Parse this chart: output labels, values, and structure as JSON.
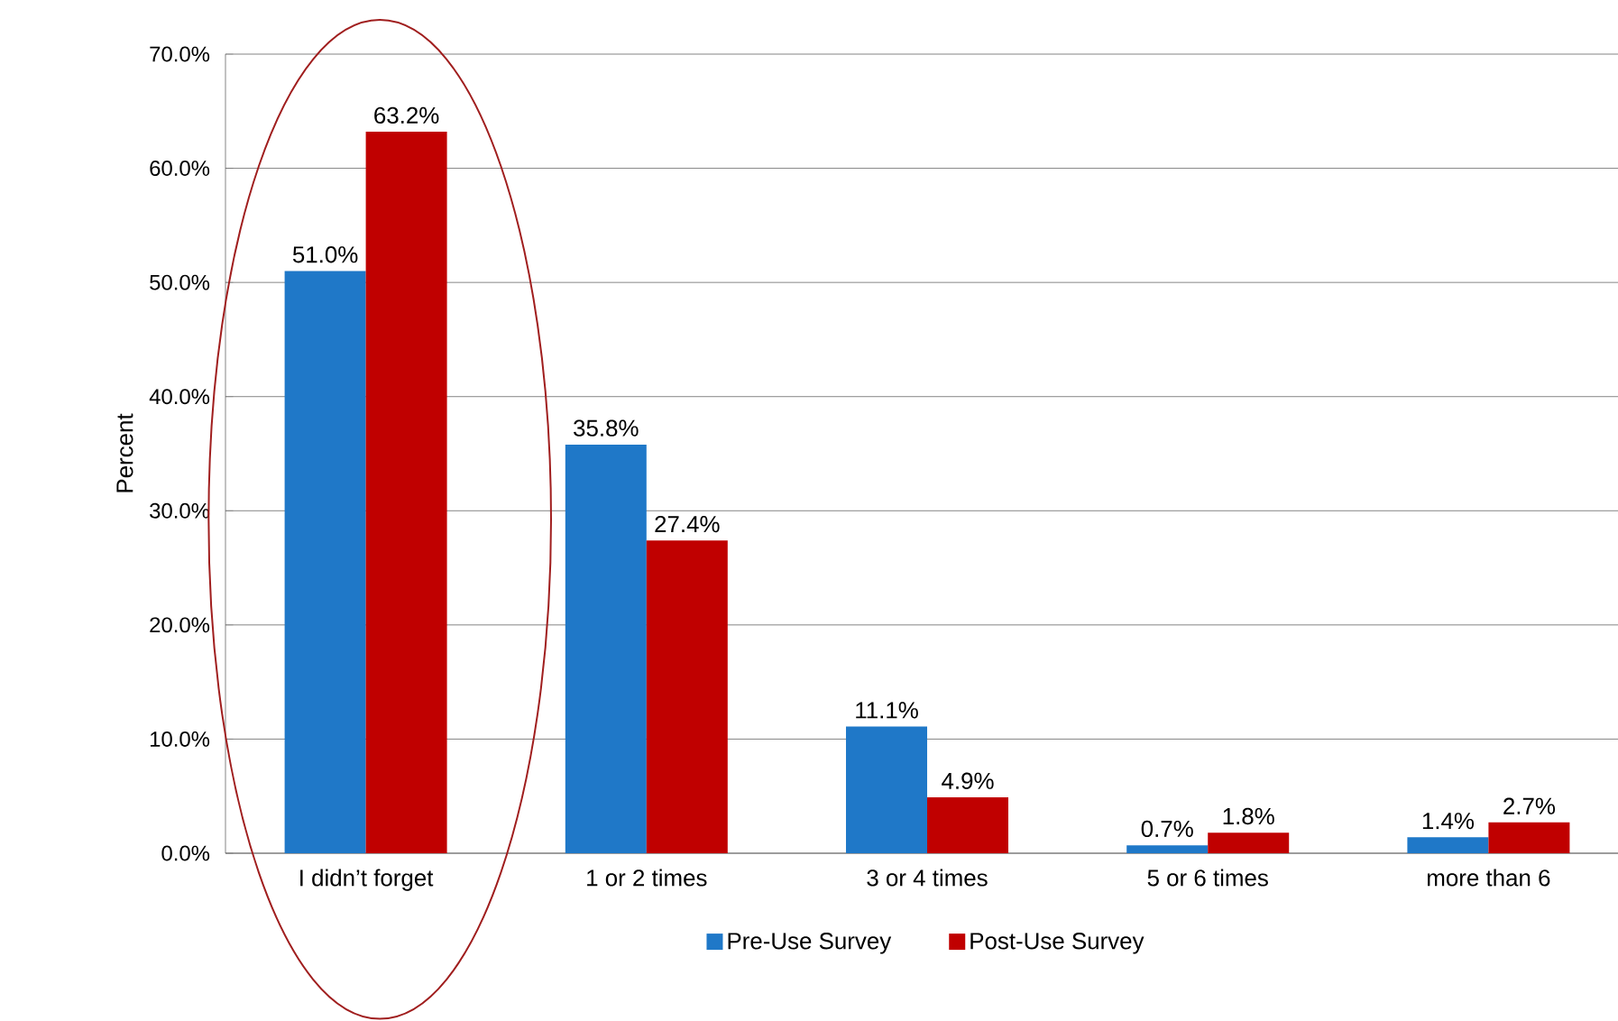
{
  "chart_data": {
    "type": "bar",
    "ylabel": "Percent",
    "categories": [
      "I didn’t forget",
      "1 or 2 times",
      "3 or 4 times",
      "5 or 6 times",
      "more than 6"
    ],
    "series": [
      {
        "name": "Pre-Use Survey",
        "color": "#1f78c8",
        "values": [
          51.0,
          35.8,
          11.1,
          0.7,
          1.4
        ],
        "value_labels": [
          "51.0%",
          "35.8%",
          "11.1%",
          "0.7%",
          "1.4%"
        ]
      },
      {
        "name": "Post-Use Survey",
        "color": "#c00000",
        "values": [
          63.2,
          27.4,
          4.9,
          1.8,
          2.7
        ],
        "value_labels": [
          "63.2%",
          "27.4%",
          "4.9%",
          "1.8%",
          "2.7%"
        ]
      }
    ],
    "ylim": [
      0,
      70
    ],
    "yticks": [
      {
        "value": 0,
        "label": "0.0%"
      },
      {
        "value": 10,
        "label": "10.0%"
      },
      {
        "value": 20,
        "label": "20.0%"
      },
      {
        "value": 30,
        "label": "30.0%"
      },
      {
        "value": 40,
        "label": "40.0%"
      },
      {
        "value": 50,
        "label": "50.0%"
      },
      {
        "value": 60,
        "label": "60.0%"
      },
      {
        "value": 70,
        "label": "70.0%"
      }
    ],
    "grid": "y",
    "legend": "bottom"
  }
}
